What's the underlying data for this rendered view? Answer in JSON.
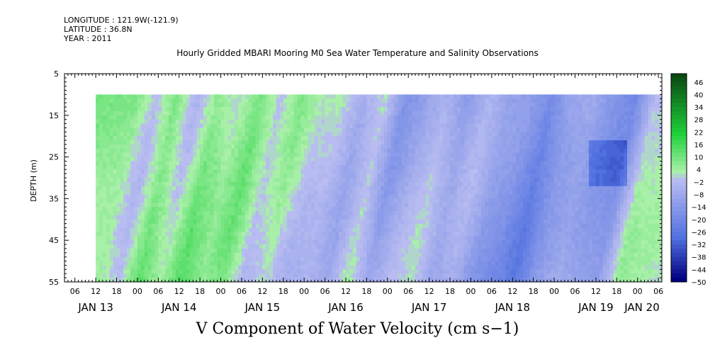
{
  "header": {
    "longitude": "LONGITUDE : 121.9W(-121.9)",
    "latitude": "LATITUDE : 36.8N",
    "year": "YEAR : 2011",
    "title": "Hourly Gridded MBARI Mooring M0 Sea Water Temperature and Salinity Observations"
  },
  "chart_data": {
    "type": "heatmap",
    "title": "Hourly Gridded MBARI Mooring M0 Sea Water Temperature and Salinity Observations",
    "variable": "V Component of Water Velocity (cm s-1)",
    "ylabel": "DEPTH (m)",
    "ylim": [
      55,
      5
    ],
    "yticks": [
      5,
      15,
      25,
      35,
      45,
      55
    ],
    "x_hour_ticks": [
      "06",
      "12",
      "18",
      "00",
      "06",
      "12",
      "18",
      "00",
      "06",
      "12",
      "18",
      "00",
      "06",
      "12",
      "18",
      "00",
      "06",
      "12",
      "18",
      "00",
      "06",
      "12",
      "18",
      "00",
      "06",
      "12",
      "18",
      "00",
      "06"
    ],
    "x_day_labels": [
      "JAN 13",
      "JAN 14",
      "JAN 15",
      "JAN 16",
      "JAN 17",
      "JAN 18",
      "JAN 19",
      "JAN 20"
    ],
    "x_start": "2011-01-13 03:00",
    "x_end": "2011-01-20 07:00",
    "data_start": "2011-01-13 12:00",
    "data_depth_range": [
      10,
      55
    ],
    "colorbar_levels": [
      48,
      46,
      44,
      42,
      40,
      38,
      36,
      34,
      32,
      30,
      28,
      26,
      24,
      22,
      20,
      18,
      16,
      14,
      12,
      10,
      8,
      6,
      4,
      2,
      0,
      -2,
      -4,
      -6,
      -8,
      -10,
      -12,
      -14,
      -16,
      -18,
      -20,
      -22,
      -24,
      -26,
      -28,
      -30,
      -32,
      -34,
      -36,
      -38,
      -40,
      -42,
      -44,
      -46,
      -48,
      -50
    ],
    "colorbar_labels": [
      "46",
      "40",
      "34",
      "28",
      "22",
      "16",
      "10",
      "4",
      "-2",
      "-8",
      "-14",
      "-20",
      "-26",
      "-32",
      "-38",
      "-44",
      "-50"
    ],
    "colors": {
      "strong_positive": "#0a4a12",
      "positive": "#1ed03a",
      "weak_positive": "#a8f0a8",
      "weak_negative": "#b8bcf0",
      "negative": "#5070e0",
      "strong_negative": "#000080"
    },
    "time_pattern": [
      {
        "time": "2011-01-13 12:00",
        "v": 6
      },
      {
        "time": "2011-01-13 18:00",
        "v": 8
      },
      {
        "time": "2011-01-14 00:00",
        "v": 0
      },
      {
        "time": "2011-01-14 06:00",
        "v": 12
      },
      {
        "time": "2011-01-14 12:00",
        "v": 0
      },
      {
        "time": "2011-01-14 18:00",
        "v": 10
      },
      {
        "time": "2011-01-15 00:00",
        "v": 2
      },
      {
        "time": "2011-01-15 06:00",
        "v": 8
      },
      {
        "time": "2011-01-15 12:00",
        "v": -4
      },
      {
        "time": "2011-01-15 18:00",
        "v": 4
      },
      {
        "time": "2011-01-16 00:00",
        "v": -2
      },
      {
        "time": "2011-01-16 06:00",
        "v": 0
      },
      {
        "time": "2011-01-16 12:00",
        "v": -6
      },
      {
        "time": "2011-01-16 18:00",
        "v": 4
      },
      {
        "time": "2011-01-17 00:00",
        "v": -12
      },
      {
        "time": "2011-01-17 06:00",
        "v": -6
      },
      {
        "time": "2011-01-17 12:00",
        "v": -2
      },
      {
        "time": "2011-01-17 18:00",
        "v": -12
      },
      {
        "time": "2011-01-18 00:00",
        "v": -6
      },
      {
        "time": "2011-01-18 06:00",
        "v": -14
      },
      {
        "time": "2011-01-18 12:00",
        "v": -16
      },
      {
        "time": "2011-01-18 18:00",
        "v": -22
      },
      {
        "time": "2011-01-19 00:00",
        "v": -10
      },
      {
        "time": "2011-01-19 06:00",
        "v": -6
      },
      {
        "time": "2011-01-19 12:00",
        "v": -12
      },
      {
        "time": "2011-01-19 18:00",
        "v": -16
      },
      {
        "time": "2011-01-20 00:00",
        "v": 2
      },
      {
        "time": "2011-01-20 06:00",
        "v": 0
      }
    ]
  },
  "footer": {
    "variable_label": "V Component of Water Velocity (cm s−1)"
  }
}
